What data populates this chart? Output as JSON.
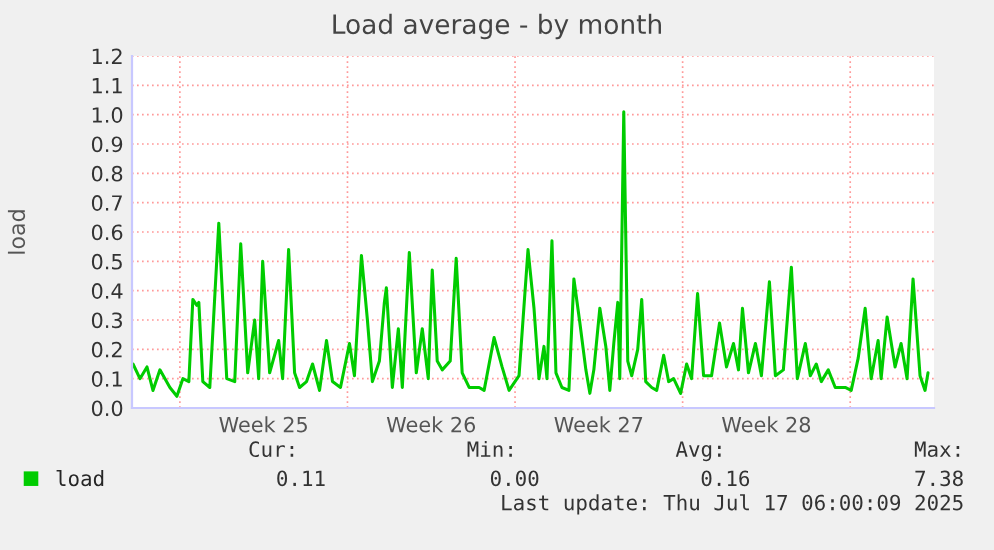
{
  "chart_data": {
    "type": "line",
    "title": "Load average - by month",
    "ylabel": "load",
    "x": [
      "2025-06-14T01:00",
      "2025-06-14T08:00",
      "2025-06-14T15:00",
      "2025-06-14T21:00",
      "2025-06-15T04:00",
      "2025-06-15T14:00",
      "2025-06-15T21:00",
      "2025-06-16T03:00",
      "2025-06-16T09:00",
      "2025-06-16T13:00",
      "2025-06-16T17:00",
      "2025-06-16T19:00",
      "2025-06-16T23:00",
      "2025-06-17T06:00",
      "2025-06-17T15:00",
      "2025-06-17T23:00",
      "2025-06-18T07:00",
      "2025-06-18T13:00",
      "2025-06-18T20:00",
      "2025-06-19T03:00",
      "2025-06-19T07:00",
      "2025-06-19T11:00",
      "2025-06-19T18:00",
      "2025-06-20T03:00",
      "2025-06-20T07:00",
      "2025-06-20T13:00",
      "2025-06-20T19:00",
      "2025-06-21T00:00",
      "2025-06-21T07:00",
      "2025-06-21T13:00",
      "2025-06-21T20:00",
      "2025-06-22T03:00",
      "2025-06-22T09:00",
      "2025-06-22T17:00",
      "2025-06-23T02:00",
      "2025-06-23T07:00",
      "2025-06-23T14:00",
      "2025-06-23T20:00",
      "2025-06-24T01:00",
      "2025-06-24T08:00",
      "2025-06-24T13:00",
      "2025-06-24T15:00",
      "2025-06-24T21:00",
      "2025-06-25T03:00",
      "2025-06-25T07:00",
      "2025-06-25T14:00",
      "2025-06-25T21:00",
      "2025-06-26T03:00",
      "2025-06-26T09:00",
      "2025-06-26T13:00",
      "2025-06-26T18:00",
      "2025-06-26T23:00",
      "2025-06-27T07:00",
      "2025-06-27T13:00",
      "2025-06-27T19:00",
      "2025-06-28T02:00",
      "2025-06-28T12:00",
      "2025-06-28T17:00",
      "2025-06-29T03:00",
      "2025-06-29T11:00",
      "2025-06-29T18:00",
      "2025-06-30T04:00",
      "2025-06-30T13:00",
      "2025-06-30T19:00",
      "2025-07-01T00:00",
      "2025-07-01T05:00",
      "2025-07-01T08:00",
      "2025-07-01T13:00",
      "2025-07-01T17:00",
      "2025-07-01T23:00",
      "2025-07-02T06:00",
      "2025-07-02T11:00",
      "2025-07-02T17:00",
      "2025-07-02T23:00",
      "2025-07-03T03:00",
      "2025-07-03T07:00",
      "2025-07-03T13:00",
      "2025-07-03T19:00",
      "2025-07-03T23:00",
      "2025-07-04T03:00",
      "2025-07-04T07:00",
      "2025-07-04T09:00",
      "2025-07-04T13:00",
      "2025-07-04T17:00",
      "2025-07-04T21:00",
      "2025-07-05T03:00",
      "2025-07-05T07:00",
      "2025-07-05T11:00",
      "2025-07-05T17:00",
      "2025-07-05T22:00",
      "2025-07-06T05:00",
      "2025-07-06T10:00",
      "2025-07-06T15:00",
      "2025-07-06T22:00",
      "2025-07-07T04:00",
      "2025-07-07T09:00",
      "2025-07-07T15:00",
      "2025-07-07T21:00",
      "2025-07-08T05:00",
      "2025-07-08T13:00",
      "2025-07-08T20:00",
      "2025-07-09T03:00",
      "2025-07-09T08:00",
      "2025-07-09T12:00",
      "2025-07-09T18:00",
      "2025-07-10T01:00",
      "2025-07-10T07:00",
      "2025-07-10T15:00",
      "2025-07-10T21:00",
      "2025-07-11T05:00",
      "2025-07-11T13:00",
      "2025-07-11T19:00",
      "2025-07-12T03:00",
      "2025-07-12T08:00",
      "2025-07-12T14:00",
      "2025-07-12T19:00",
      "2025-07-13T02:00",
      "2025-07-13T09:00",
      "2025-07-13T19:00",
      "2025-07-14T01:00",
      "2025-07-14T08:00",
      "2025-07-14T15:00",
      "2025-07-14T21:00",
      "2025-07-15T04:00",
      "2025-07-15T07:00",
      "2025-07-15T13:00",
      "2025-07-15T21:00",
      "2025-07-16T03:00",
      "2025-07-16T09:00",
      "2025-07-16T15:00",
      "2025-07-16T22:00",
      "2025-07-17T03:00",
      "2025-07-17T06:00"
    ],
    "series": [
      {
        "name": "load",
        "color": "#00cc00",
        "values": [
          0.15,
          0.1,
          0.14,
          0.06,
          0.13,
          0.07,
          0.04,
          0.1,
          0.09,
          0.37,
          0.35,
          0.36,
          0.09,
          0.07,
          0.63,
          0.1,
          0.09,
          0.56,
          0.12,
          0.3,
          0.1,
          0.5,
          0.12,
          0.23,
          0.1,
          0.54,
          0.12,
          0.07,
          0.09,
          0.15,
          0.06,
          0.23,
          0.09,
          0.07,
          0.22,
          0.11,
          0.52,
          0.3,
          0.09,
          0.16,
          0.36,
          0.41,
          0.07,
          0.27,
          0.07,
          0.53,
          0.12,
          0.27,
          0.1,
          0.47,
          0.16,
          0.13,
          0.16,
          0.51,
          0.12,
          0.07,
          0.07,
          0.06,
          0.24,
          0.14,
          0.06,
          0.11,
          0.54,
          0.34,
          0.1,
          0.21,
          0.1,
          0.57,
          0.12,
          0.07,
          0.06,
          0.44,
          0.29,
          0.13,
          0.05,
          0.13,
          0.34,
          0.21,
          0.06,
          0.22,
          0.36,
          0.1,
          1.01,
          0.16,
          0.11,
          0.2,
          0.37,
          0.09,
          0.07,
          0.06,
          0.18,
          0.09,
          0.1,
          0.05,
          0.15,
          0.1,
          0.39,
          0.11,
          0.11,
          0.29,
          0.14,
          0.22,
          0.13,
          0.34,
          0.12,
          0.22,
          0.11,
          0.43,
          0.11,
          0.13,
          0.48,
          0.1,
          0.22,
          0.11,
          0.15,
          0.09,
          0.13,
          0.07,
          0.07,
          0.06,
          0.17,
          0.34,
          0.1,
          0.23,
          0.1,
          0.31,
          0.14,
          0.22,
          0.1,
          0.44,
          0.11,
          0.06,
          0.12
        ]
      }
    ],
    "xlim": [
      "2025-06-14T00:00",
      "2025-07-17T12:00"
    ],
    "xticks": [
      {
        "value": "2025-06-16",
        "label": null
      },
      {
        "value": "2025-06-19T12:00",
        "label": "Week 25"
      },
      {
        "value": "2025-06-23",
        "label": null
      },
      {
        "value": "2025-06-26T12:00",
        "label": "Week 26"
      },
      {
        "value": "2025-06-30",
        "label": null
      },
      {
        "value": "2025-07-03T12:00",
        "label": "Week 27"
      },
      {
        "value": "2025-07-07",
        "label": null
      },
      {
        "value": "2025-07-10T12:00",
        "label": "Week 28"
      },
      {
        "value": "2025-07-14",
        "label": null
      }
    ],
    "ylim": [
      0,
      1.2
    ],
    "yticks": [
      {
        "value": 0,
        "label": "0.0"
      },
      0.1,
      0.2,
      0.3,
      0.4,
      0.5,
      0.6,
      0.7,
      0.8,
      0.9,
      {
        "value": 1,
        "label": "1.0"
      },
      1.1,
      1.2
    ],
    "grid": true,
    "legend": "bottom left",
    "annotations": [
      "Cur:",
      "Min:",
      "Avg:",
      "Max:",
      "0.11",
      "0.00",
      "0.16",
      "7.38",
      "Last update: Thu Jul 17 06:00:09 2025"
    ]
  }
}
